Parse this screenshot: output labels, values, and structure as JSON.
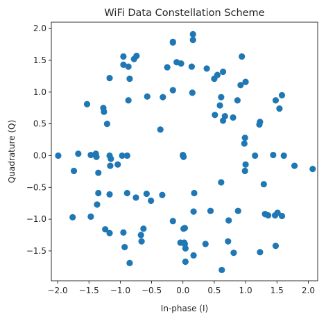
{
  "chart_data": {
    "type": "scatter",
    "title": "WiFi Data Constellation Scheme",
    "xlabel": "In-phase (I)",
    "ylabel": "Quadrature (Q)",
    "xlim": [
      -2.1,
      2.15
    ],
    "ylim": [
      -1.97,
      2.1
    ],
    "xticks": [
      -2.0,
      -1.5,
      -1.0,
      -0.5,
      0.0,
      0.5,
      1.0,
      1.5,
      2.0
    ],
    "xtick_labels": [
      "−2.0",
      "−1.5",
      "−1.0",
      "−0.5",
      "0.0",
      "0.5",
      "1.0",
      "1.5",
      "2.0"
    ],
    "yticks": [
      -1.5,
      -1.0,
      -0.5,
      0.0,
      0.5,
      1.0,
      1.5,
      2.0
    ],
    "ytick_labels": [
      "−1.5",
      "−1.0",
      "−0.5",
      "0.0",
      "0.5",
      "1.0",
      "1.5",
      "2.0"
    ],
    "grid": false,
    "marker_color": "#1f77b4",
    "points": [
      [
        0.16,
        1.91
      ],
      [
        0.16,
        1.82
      ],
      [
        -0.16,
        1.79
      ],
      [
        -0.16,
        1.78
      ],
      [
        -0.95,
        1.56
      ],
      [
        -0.74,
        1.57
      ],
      [
        -0.78,
        1.52
      ],
      [
        0.94,
        1.56
      ],
      [
        -0.95,
        1.43
      ],
      [
        -0.87,
        1.4
      ],
      [
        -0.1,
        1.47
      ],
      [
        -0.03,
        1.45
      ],
      [
        0.14,
        1.4
      ],
      [
        -0.25,
        1.39
      ],
      [
        0.38,
        1.37
      ],
      [
        0.64,
        1.32
      ],
      [
        0.55,
        1.27
      ],
      [
        0.5,
        1.21
      ],
      [
        -1.17,
        1.22
      ],
      [
        -0.85,
        1.21
      ],
      [
        0.92,
        1.11
      ],
      [
        1.0,
        1.16
      ],
      [
        -0.16,
        1.03
      ],
      [
        0.15,
        0.99
      ],
      [
        -0.57,
        0.93
      ],
      [
        -0.32,
        0.92
      ],
      [
        0.61,
        0.92
      ],
      [
        0.87,
        0.87
      ],
      [
        1.58,
        0.95
      ],
      [
        -0.87,
        0.87
      ],
      [
        1.48,
        0.87
      ],
      [
        -1.53,
        0.81
      ],
      [
        -1.27,
        0.75
      ],
      [
        -1.26,
        0.69
      ],
      [
        0.59,
        0.79
      ],
      [
        1.54,
        0.74
      ],
      [
        0.51,
        0.64
      ],
      [
        0.67,
        0.62
      ],
      [
        0.8,
        0.6
      ],
      [
        0.64,
        0.55
      ],
      [
        1.23,
        0.53
      ],
      [
        1.22,
        0.49
      ],
      [
        -1.21,
        0.5
      ],
      [
        -0.36,
        0.41
      ],
      [
        0.99,
        0.28
      ],
      [
        0.98,
        0.19
      ],
      [
        -1.99,
        0.0
      ],
      [
        -1.67,
        0.03
      ],
      [
        -1.47,
        0.01
      ],
      [
        -1.39,
        0.03
      ],
      [
        -1.38,
        -0.02
      ],
      [
        -1.17,
        0.0
      ],
      [
        -1.15,
        -0.05
      ],
      [
        -0.97,
        0.0
      ],
      [
        -0.89,
        0.0
      ],
      [
        0.0,
        0.0
      ],
      [
        0.0,
        0.01
      ],
      [
        0.01,
        -0.02
      ],
      [
        1.15,
        0.0
      ],
      [
        1.44,
        0.01
      ],
      [
        1.61,
        0.0
      ],
      [
        1.78,
        -0.16
      ],
      [
        2.07,
        -0.21
      ],
      [
        1.0,
        -0.14
      ],
      [
        0.99,
        -0.24
      ],
      [
        -1.35,
        -0.27
      ],
      [
        -1.16,
        -0.16
      ],
      [
        -1.04,
        -0.14
      ],
      [
        -1.74,
        -0.24
      ],
      [
        0.61,
        -0.42
      ],
      [
        1.29,
        -0.45
      ],
      [
        -1.35,
        -0.59
      ],
      [
        -1.17,
        -0.61
      ],
      [
        -0.89,
        -0.59
      ],
      [
        -0.58,
        -0.6
      ],
      [
        -0.75,
        -0.66
      ],
      [
        -0.51,
        -0.71
      ],
      [
        -0.33,
        -0.62
      ],
      [
        0.18,
        -0.59
      ],
      [
        -1.37,
        -0.77
      ],
      [
        -1.47,
        -0.96
      ],
      [
        -1.76,
        -0.97
      ],
      [
        0.17,
        -0.88
      ],
      [
        0.44,
        -0.87
      ],
      [
        0.88,
        -0.87
      ],
      [
        1.51,
        -0.9
      ],
      [
        1.47,
        -0.94
      ],
      [
        1.58,
        -0.95
      ],
      [
        1.36,
        -0.94
      ],
      [
        1.31,
        -0.92
      ],
      [
        -0.95,
        -1.21
      ],
      [
        -1.24,
        -1.16
      ],
      [
        -1.17,
        -1.22
      ],
      [
        -0.67,
        -1.25
      ],
      [
        -0.63,
        -1.15
      ],
      [
        -0.16,
        -1.03
      ],
      [
        0.73,
        -1.02
      ],
      [
        0.03,
        -1.14
      ],
      [
        0.01,
        -1.15
      ],
      [
        -0.66,
        -1.35
      ],
      [
        -0.93,
        -1.44
      ],
      [
        0.02,
        -1.37
      ],
      [
        0.03,
        -1.39
      ],
      [
        -0.04,
        -1.37
      ],
      [
        0.04,
        -1.46
      ],
      [
        0.36,
        -1.39
      ],
      [
        0.72,
        -1.35
      ],
      [
        0.17,
        -1.57
      ],
      [
        0.81,
        -1.53
      ],
      [
        1.23,
        -1.52
      ],
      [
        1.48,
        -1.42
      ],
      [
        0.04,
        -1.67
      ],
      [
        -0.85,
        -1.69
      ],
      [
        0.62,
        -1.8
      ]
    ]
  }
}
